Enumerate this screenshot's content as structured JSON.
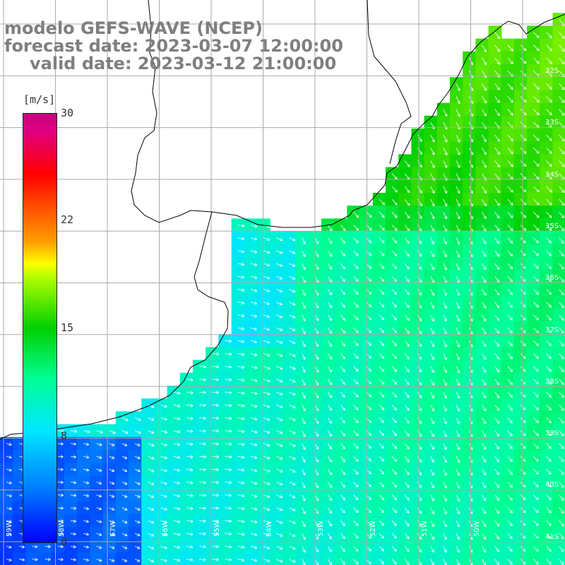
{
  "title": {
    "line1": "modelo GEFS-WAVE (NCEP)",
    "line2": "forecast date: 2023-03-07 12:00:00",
    "line3": "valid date: 2023-03-12 21:00:00"
  },
  "colorbar": {
    "units": "[m/s]",
    "ticks": [
      "30",
      "22",
      "15",
      "8",
      "0"
    ],
    "tick_values": [
      30,
      22,
      15,
      8,
      0
    ],
    "min": 0,
    "max": 30,
    "colors": [
      "#0000ff",
      "#0080ff",
      "#00e6ff",
      "#00ff96",
      "#00d000",
      "#b4ff00",
      "#ffff00",
      "#ffa000",
      "#ff0000",
      "#c80080"
    ]
  },
  "map": {
    "latitude_labels": [
      "32S",
      "33S",
      "34S",
      "35S",
      "36S",
      "37S",
      "38S",
      "39S",
      "40S",
      "41S"
    ],
    "longitude_labels": [
      "59W",
      "58W",
      "57W",
      "56W",
      "55W",
      "54W",
      "53W",
      "52W",
      "51W",
      "50W"
    ],
    "land_color": "#ffffff",
    "grid_color": "#aaaaaa",
    "coast_color": "#000000",
    "arrow_color": "#ffffff"
  }
}
